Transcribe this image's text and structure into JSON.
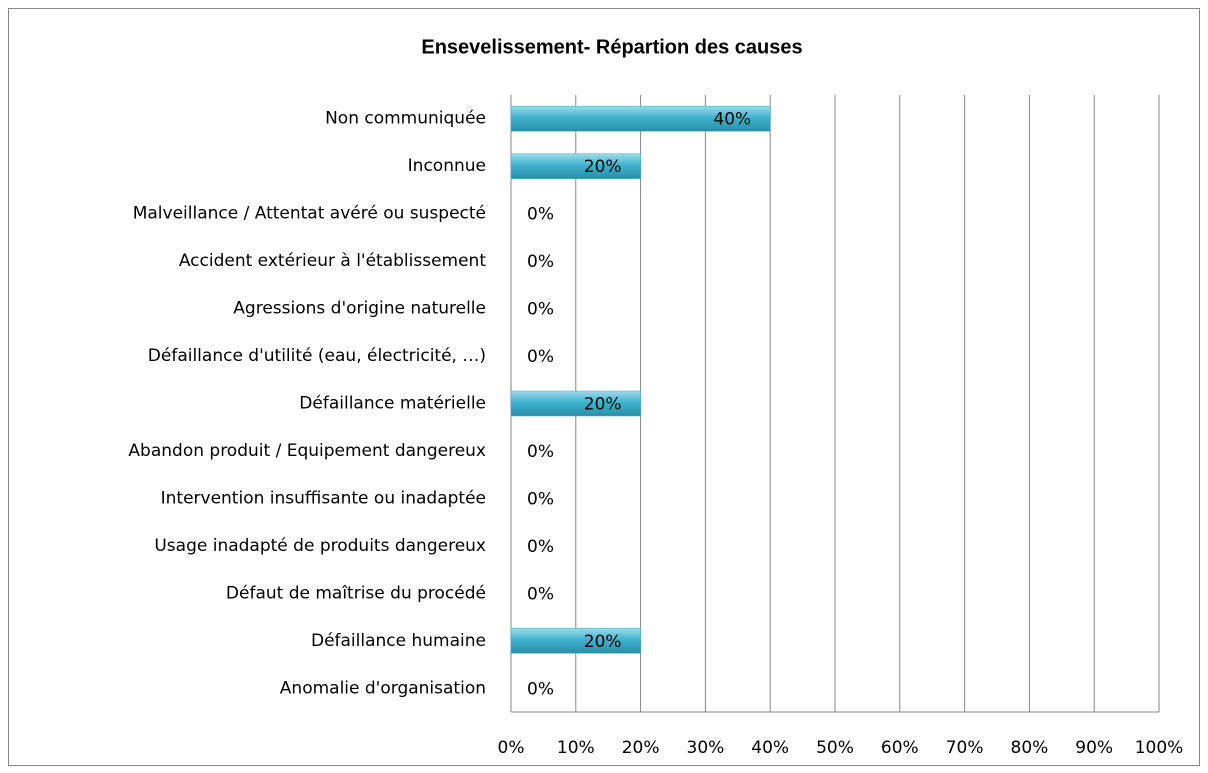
{
  "chart_data": {
    "type": "bar",
    "orientation": "horizontal",
    "title": "Ensevelissement- Répartion des causes",
    "categories": [
      "Non communiquée",
      "Inconnue",
      "Malveillance / Attentat avéré ou suspecté",
      "Accident extérieur à l'établissement",
      "Agressions d'origine naturelle",
      "Défaillance d'utilité (eau, électricité, …)",
      "Défaillance matérielle",
      "Abandon produit / Equipement dangereux",
      "Intervention insuffisante ou inadaptée",
      "Usage inadapté de produits dangereux",
      "Défaut de maîtrise du procédé",
      "Défaillance humaine",
      "Anomalie d'organisation"
    ],
    "values": [
      40,
      20,
      0,
      0,
      0,
      0,
      20,
      0,
      0,
      0,
      0,
      20,
      0
    ],
    "value_labels": [
      "40%",
      "20%",
      "0%",
      "0%",
      "0%",
      "0%",
      "20%",
      "0%",
      "0%",
      "0%",
      "0%",
      "20%",
      "0%"
    ],
    "color": "#4bacc6",
    "xlim": [
      0,
      100
    ],
    "xticks": [
      {
        "value": 0,
        "label": "0%"
      },
      {
        "value": 10,
        "label": "10%"
      },
      {
        "value": 20,
        "label": "20%"
      },
      {
        "value": 30,
        "label": "30%"
      },
      {
        "value": 40,
        "label": "40%"
      },
      {
        "value": 50,
        "label": "50%"
      },
      {
        "value": 60,
        "label": "60%"
      },
      {
        "value": 70,
        "label": "70%"
      },
      {
        "value": 80,
        "label": "80%"
      },
      {
        "value": 90,
        "label": "90%"
      },
      {
        "value": 100,
        "label": "100%"
      }
    ],
    "grid": true
  }
}
